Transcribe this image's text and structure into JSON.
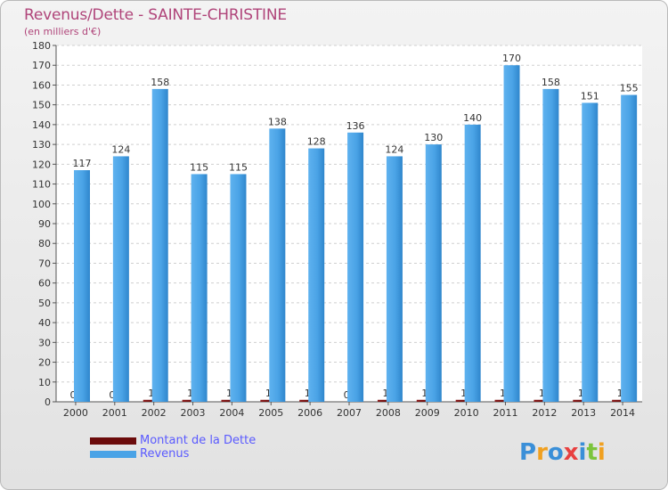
{
  "title": "Revenus/Dette - SAINTE-CHRISTINE",
  "subtitle": "(en milliers d'€)",
  "colors": {
    "dette": "#6b0b0b",
    "revenus": "#4aa3e6",
    "title": "#b0457a",
    "legend_text": "#5a5aff"
  },
  "legend": [
    {
      "label": "Montant de la Dette",
      "color": "#6b0b0b"
    },
    {
      "label": "Revenus",
      "color": "#4aa3e6"
    }
  ],
  "logo_text": "Proxiti",
  "chart_data": {
    "type": "bar",
    "title": "Revenus/Dette - SAINTE-CHRISTINE",
    "ylabel": "(en milliers d'€)",
    "xlabel": "",
    "categories": [
      "2000",
      "2001",
      "2002",
      "2003",
      "2004",
      "2005",
      "2006",
      "2007",
      "2008",
      "2009",
      "2010",
      "2011",
      "2012",
      "2013",
      "2014"
    ],
    "series": [
      {
        "name": "Montant de la Dette",
        "values": [
          0,
          0,
          1,
          1,
          1,
          1,
          1,
          0,
          1,
          1,
          1,
          1,
          1,
          1,
          1
        ]
      },
      {
        "name": "Revenus",
        "values": [
          117,
          124,
          158,
          115,
          115,
          138,
          128,
          136,
          124,
          130,
          140,
          170,
          158,
          151,
          155
        ]
      }
    ],
    "ylim": [
      0,
      180
    ],
    "yticks": [
      0,
      10,
      20,
      30,
      40,
      50,
      60,
      70,
      80,
      90,
      100,
      110,
      120,
      130,
      140,
      150,
      160,
      170,
      180
    ],
    "grid": true,
    "legend_position": "bottom-left"
  }
}
